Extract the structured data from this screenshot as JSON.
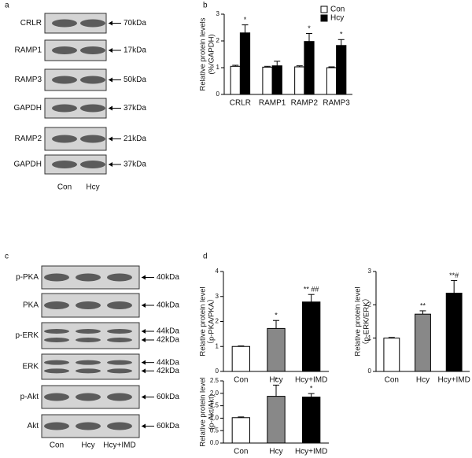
{
  "panel_labels": [
    "a",
    "b",
    "c",
    "d"
  ],
  "blots": [
    {
      "lanes": [
        "Con",
        "Hcy"
      ],
      "rows": [
        {
          "label": "CRLR",
          "sizes": [
            "70kDa"
          ]
        },
        {
          "label": "RAMP1",
          "sizes": [
            "17kDa"
          ]
        },
        {
          "label": "RAMP3",
          "sizes": [
            "50kDa"
          ]
        },
        {
          "label": "GAPDH",
          "sizes": [
            "37kDa"
          ]
        },
        {
          "label": "RAMP2",
          "sizes": [
            "21kDa"
          ]
        },
        {
          "label": "GAPDH",
          "sizes": [
            "37kDa"
          ]
        }
      ]
    },
    {
      "lanes": [
        "Con",
        "Hcy",
        "Hcy+IMD"
      ],
      "rows": [
        {
          "label": "p-PKA",
          "sizes": [
            "40kDa"
          ]
        },
        {
          "label": "PKA",
          "sizes": [
            "40kDa"
          ]
        },
        {
          "label": "p-ERK",
          "sizes": [
            "44kDa",
            "42kDa"
          ]
        },
        {
          "label": "ERK",
          "sizes": [
            "44kDa",
            "42kDa"
          ]
        },
        {
          "label": "p-Akt",
          "sizes": [
            "60kDa"
          ]
        },
        {
          "label": "Akt",
          "sizes": [
            "60kDa"
          ]
        }
      ]
    }
  ],
  "chart_data": [
    {
      "type": "bar",
      "ylabel": [
        "Relative protein levels",
        "(%/GAPDH)"
      ],
      "categories": [
        "CRLR",
        "RAMP1",
        "RAMP2",
        "RAMP3"
      ],
      "series": [
        {
          "name": "Con",
          "color": "#ffffff",
          "values": [
            1.05,
            1.02,
            1.03,
            1.0
          ],
          "errors": [
            0.04,
            0.03,
            0.04,
            0.03
          ],
          "annotations": [
            null,
            null,
            null,
            null
          ]
        },
        {
          "name": "Hcy",
          "color": "#000000",
          "values": [
            2.3,
            1.07,
            1.98,
            1.83
          ],
          "errors": [
            0.3,
            0.17,
            0.3,
            0.22
          ],
          "annotations": [
            "*",
            null,
            "*",
            "*"
          ]
        }
      ],
      "ylim": [
        0,
        3
      ],
      "yticks": [
        0,
        1,
        2,
        3
      ],
      "legend": "top-right"
    },
    {
      "type": "bar",
      "ylabel": [
        "Relative protein level",
        "（p-PKA/PKA）"
      ],
      "categories": [
        "Con",
        "Hcy",
        "Hcy+IMD"
      ],
      "values": [
        1.0,
        1.72,
        2.78
      ],
      "errors": [
        0.02,
        0.32,
        0.3
      ],
      "colors": [
        "#ffffff",
        "#888888",
        "#000000"
      ],
      "annotations": [
        null,
        "*",
        "** ##"
      ],
      "ylim": [
        0,
        4
      ],
      "yticks": [
        0,
        1,
        2,
        3,
        4
      ]
    },
    {
      "type": "bar",
      "ylabel": [
        "Relative protein level",
        "（p-ERK/ERK）"
      ],
      "categories": [
        "Con",
        "Hcy",
        "Hcy+IMD"
      ],
      "values": [
        1.0,
        1.72,
        2.35
      ],
      "errors": [
        0.02,
        0.1,
        0.38
      ],
      "colors": [
        "#ffffff",
        "#888888",
        "#000000"
      ],
      "annotations": [
        null,
        "**",
        "**#"
      ],
      "ylim": [
        0,
        3
      ],
      "yticks": [
        0,
        1,
        2,
        3
      ]
    },
    {
      "type": "bar",
      "ylabel": [
        "Relative protein level",
        "(p-Akt/Akt)"
      ],
      "categories": [
        "Con",
        "Hcy",
        "Hcy+IMD"
      ],
      "values": [
        1.02,
        1.88,
        1.85
      ],
      "errors": [
        0.03,
        0.45,
        0.14
      ],
      "colors": [
        "#ffffff",
        "#888888",
        "#000000"
      ],
      "annotations": [
        null,
        "*",
        "*"
      ],
      "ylim": [
        0,
        2.5
      ],
      "yticks": [
        {
          "value": 0,
          "label": "0.0"
        },
        0.5,
        {
          "value": 1,
          "label": "1.0"
        },
        1.5,
        {
          "value": 2,
          "label": "2.0"
        },
        2.5
      ]
    }
  ]
}
